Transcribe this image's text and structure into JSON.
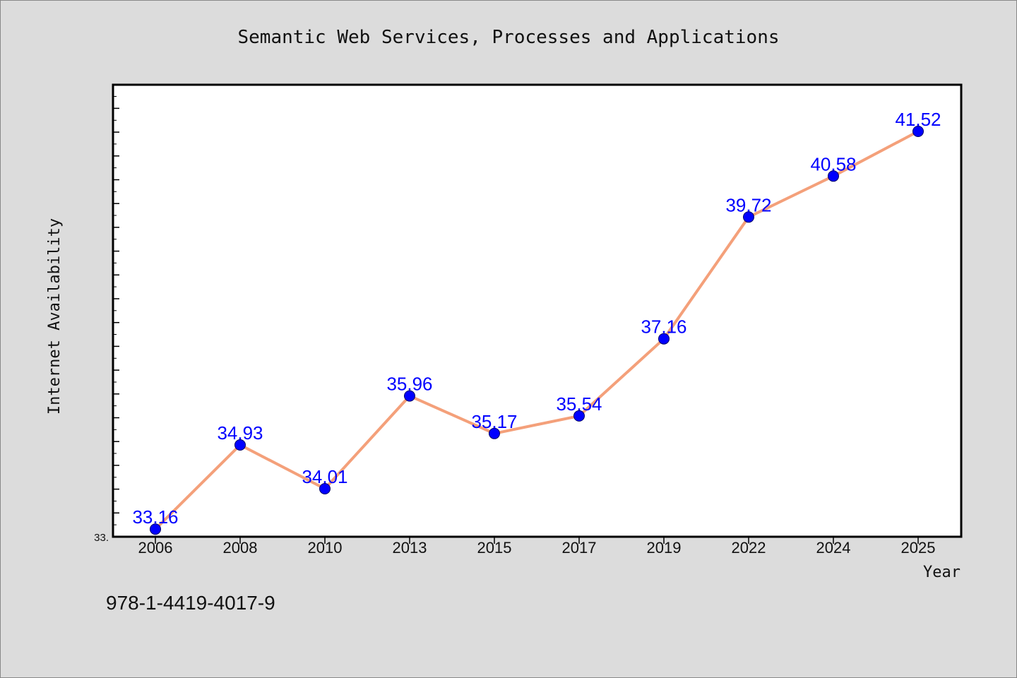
{
  "chart_data": {
    "type": "line",
    "title": "Semantic Web Services, Processes and Applications",
    "xlabel": "Year",
    "ylabel": "Internet Availability",
    "categories": [
      "2006",
      "2008",
      "2010",
      "2013",
      "2015",
      "2017",
      "2019",
      "2022",
      "2024",
      "2025"
    ],
    "series": [
      {
        "values": [
          33.16,
          34.93,
          34.01,
          35.96,
          35.17,
          35.54,
          37.16,
          39.72,
          40.58,
          41.52
        ]
      }
    ],
    "data_labels": [
      "33.16",
      "34.93",
      "34.01",
      "35.96",
      "35.17",
      "35.54",
      "37.16",
      "39.72",
      "40.58",
      "41.52"
    ],
    "ylim": [
      33.0,
      42.5
    ],
    "ytick_labels": [
      "33."
    ],
    "grid": false,
    "legend": "none",
    "colors": {
      "line": "#f4a07a",
      "marker": "#0000ff",
      "data_label": "#0000ff",
      "background": "#dcdcdc",
      "plot_area": "#ffffff"
    },
    "footer": "978-1-4419-4017-9"
  }
}
